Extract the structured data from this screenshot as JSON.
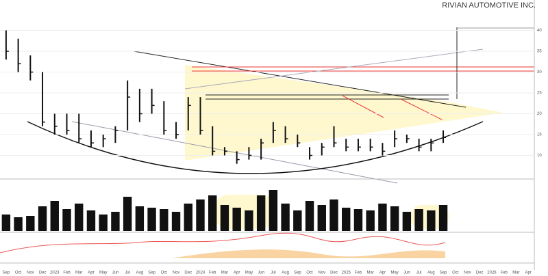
{
  "chart_data": {
    "type": "ohlc",
    "title": "RIVIAN AUTOMOTIVE INC.",
    "categories": [
      "Sep",
      "Oct",
      "Nov",
      "Dec",
      "2023",
      "Feb",
      "Mar",
      "Apr",
      "May",
      "Jun",
      "Jul",
      "Aug",
      "Sep",
      "Oct",
      "Nov",
      "Dec",
      "2024",
      "Feb",
      "Mar",
      "Apr",
      "May",
      "Jun",
      "Jul",
      "Aug",
      "Sep",
      "Oct",
      "Nov",
      "Dec",
      "2025",
      "Feb",
      "Mar",
      "Apr",
      "May",
      "Jun",
      "Jul",
      "Aug",
      "Sep",
      "Oct",
      "Nov",
      "Dec",
      "2026",
      "Feb",
      "Mar",
      "Apr"
    ],
    "high": [
      40,
      38,
      34,
      30,
      20,
      20,
      20,
      16,
      15,
      17,
      28,
      26,
      26,
      23,
      18,
      24,
      24,
      17,
      12,
      11,
      12,
      14,
      18,
      17,
      15,
      12,
      13,
      17,
      14,
      14,
      14,
      13,
      16,
      15,
      14,
      14,
      16,
      null,
      null,
      null,
      null,
      null,
      null,
      null
    ],
    "low": [
      33,
      30,
      28,
      17,
      15,
      15,
      13,
      12,
      12,
      13,
      16,
      18,
      20,
      15,
      14,
      16,
      15,
      10,
      10,
      8,
      9,
      9,
      13,
      13,
      12,
      9,
      10,
      12,
      11,
      11,
      11,
      10,
      12,
      13,
      11,
      11,
      13,
      null,
      null,
      null,
      null,
      null,
      null,
      null
    ],
    "close": [
      35,
      32,
      30,
      18,
      17,
      16,
      14,
      13,
      14,
      16,
      24,
      20,
      22,
      16,
      15,
      22,
      16,
      11,
      11,
      9,
      10,
      13,
      16,
      14,
      13,
      10,
      12,
      13,
      12,
      12,
      12,
      11,
      14,
      14,
      12,
      13,
      14.3,
      null,
      null,
      null,
      null,
      null,
      null,
      null
    ],
    "volume": [
      120,
      100,
      110,
      180,
      220,
      160,
      200,
      150,
      120,
      140,
      250,
      180,
      170,
      160,
      140,
      200,
      230,
      260,
      190,
      170,
      150,
      260,
      300,
      200,
      150,
      220,
      190,
      230,
      170,
      160,
      150,
      200,
      180,
      140,
      160,
      150,
      190,
      null,
      null,
      null,
      null,
      null,
      null,
      null
    ],
    "color": "#111111",
    "volume_color": "#111111",
    "ylim": [
      5,
      45
    ],
    "yticks": [
      10,
      15,
      20,
      25,
      30,
      35,
      40
    ],
    "volume_ylim": [
      0,
      350
    ],
    "grid": true
  }
}
